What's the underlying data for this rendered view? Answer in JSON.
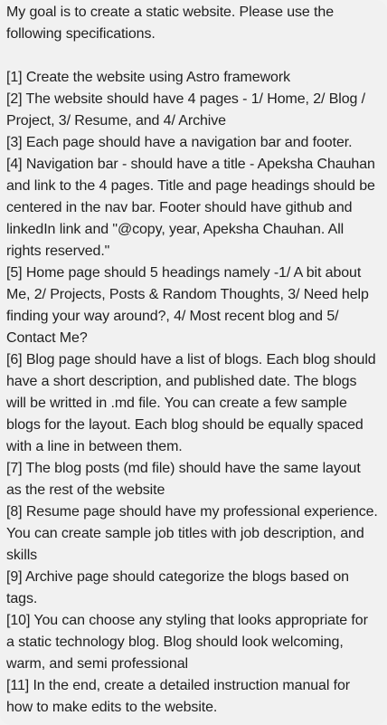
{
  "message": {
    "text": "My goal is to create a static website. Please use the following specifications.\n\n[1] Create the website using Astro framework\n[2] The website should have 4 pages - 1/ Home, 2/ Blog / Project, 3/ Resume, and 4/ Archive\n[3] Each page should have a navigation bar and footer.\n[4] Navigation bar - should have a title - Apeksha Chauhan and link to the 4 pages. Title and page headings should be centered in the nav bar. Footer should have github and linkedIn link and \"@copy, year, Apeksha Chauhan. All rights reserved.\"\n[5] Home page should 5 headings namely -1/ A bit about Me, 2/ Projects, Posts & Random Thoughts, 3/ Need help finding your way around?, 4/ Most recent blog and 5/ Contact Me?\n[6] Blog page should have a list of blogs. Each blog should have a short description, and published date. The blogs will be writted in .md file. You can create a few sample blogs for the layout. Each blog should be equally spaced with a line in between them.\n[7] The blog posts (md file) should have the same layout as the rest of the website\n[8] Resume page should have my professional experience. You can create sample job titles with job description, and skills\n[9] Archive page should categorize the blogs based on tags.\n[10] You can choose any styling that looks appropriate for a static technology blog. Blog should look welcoming, warm, and semi professional\n[11] In the end, create a detailed instruction manual for how to make edits to the website."
  },
  "colors": {
    "bubble_background": "#f1f1f1",
    "text": "#1f1f1f"
  }
}
